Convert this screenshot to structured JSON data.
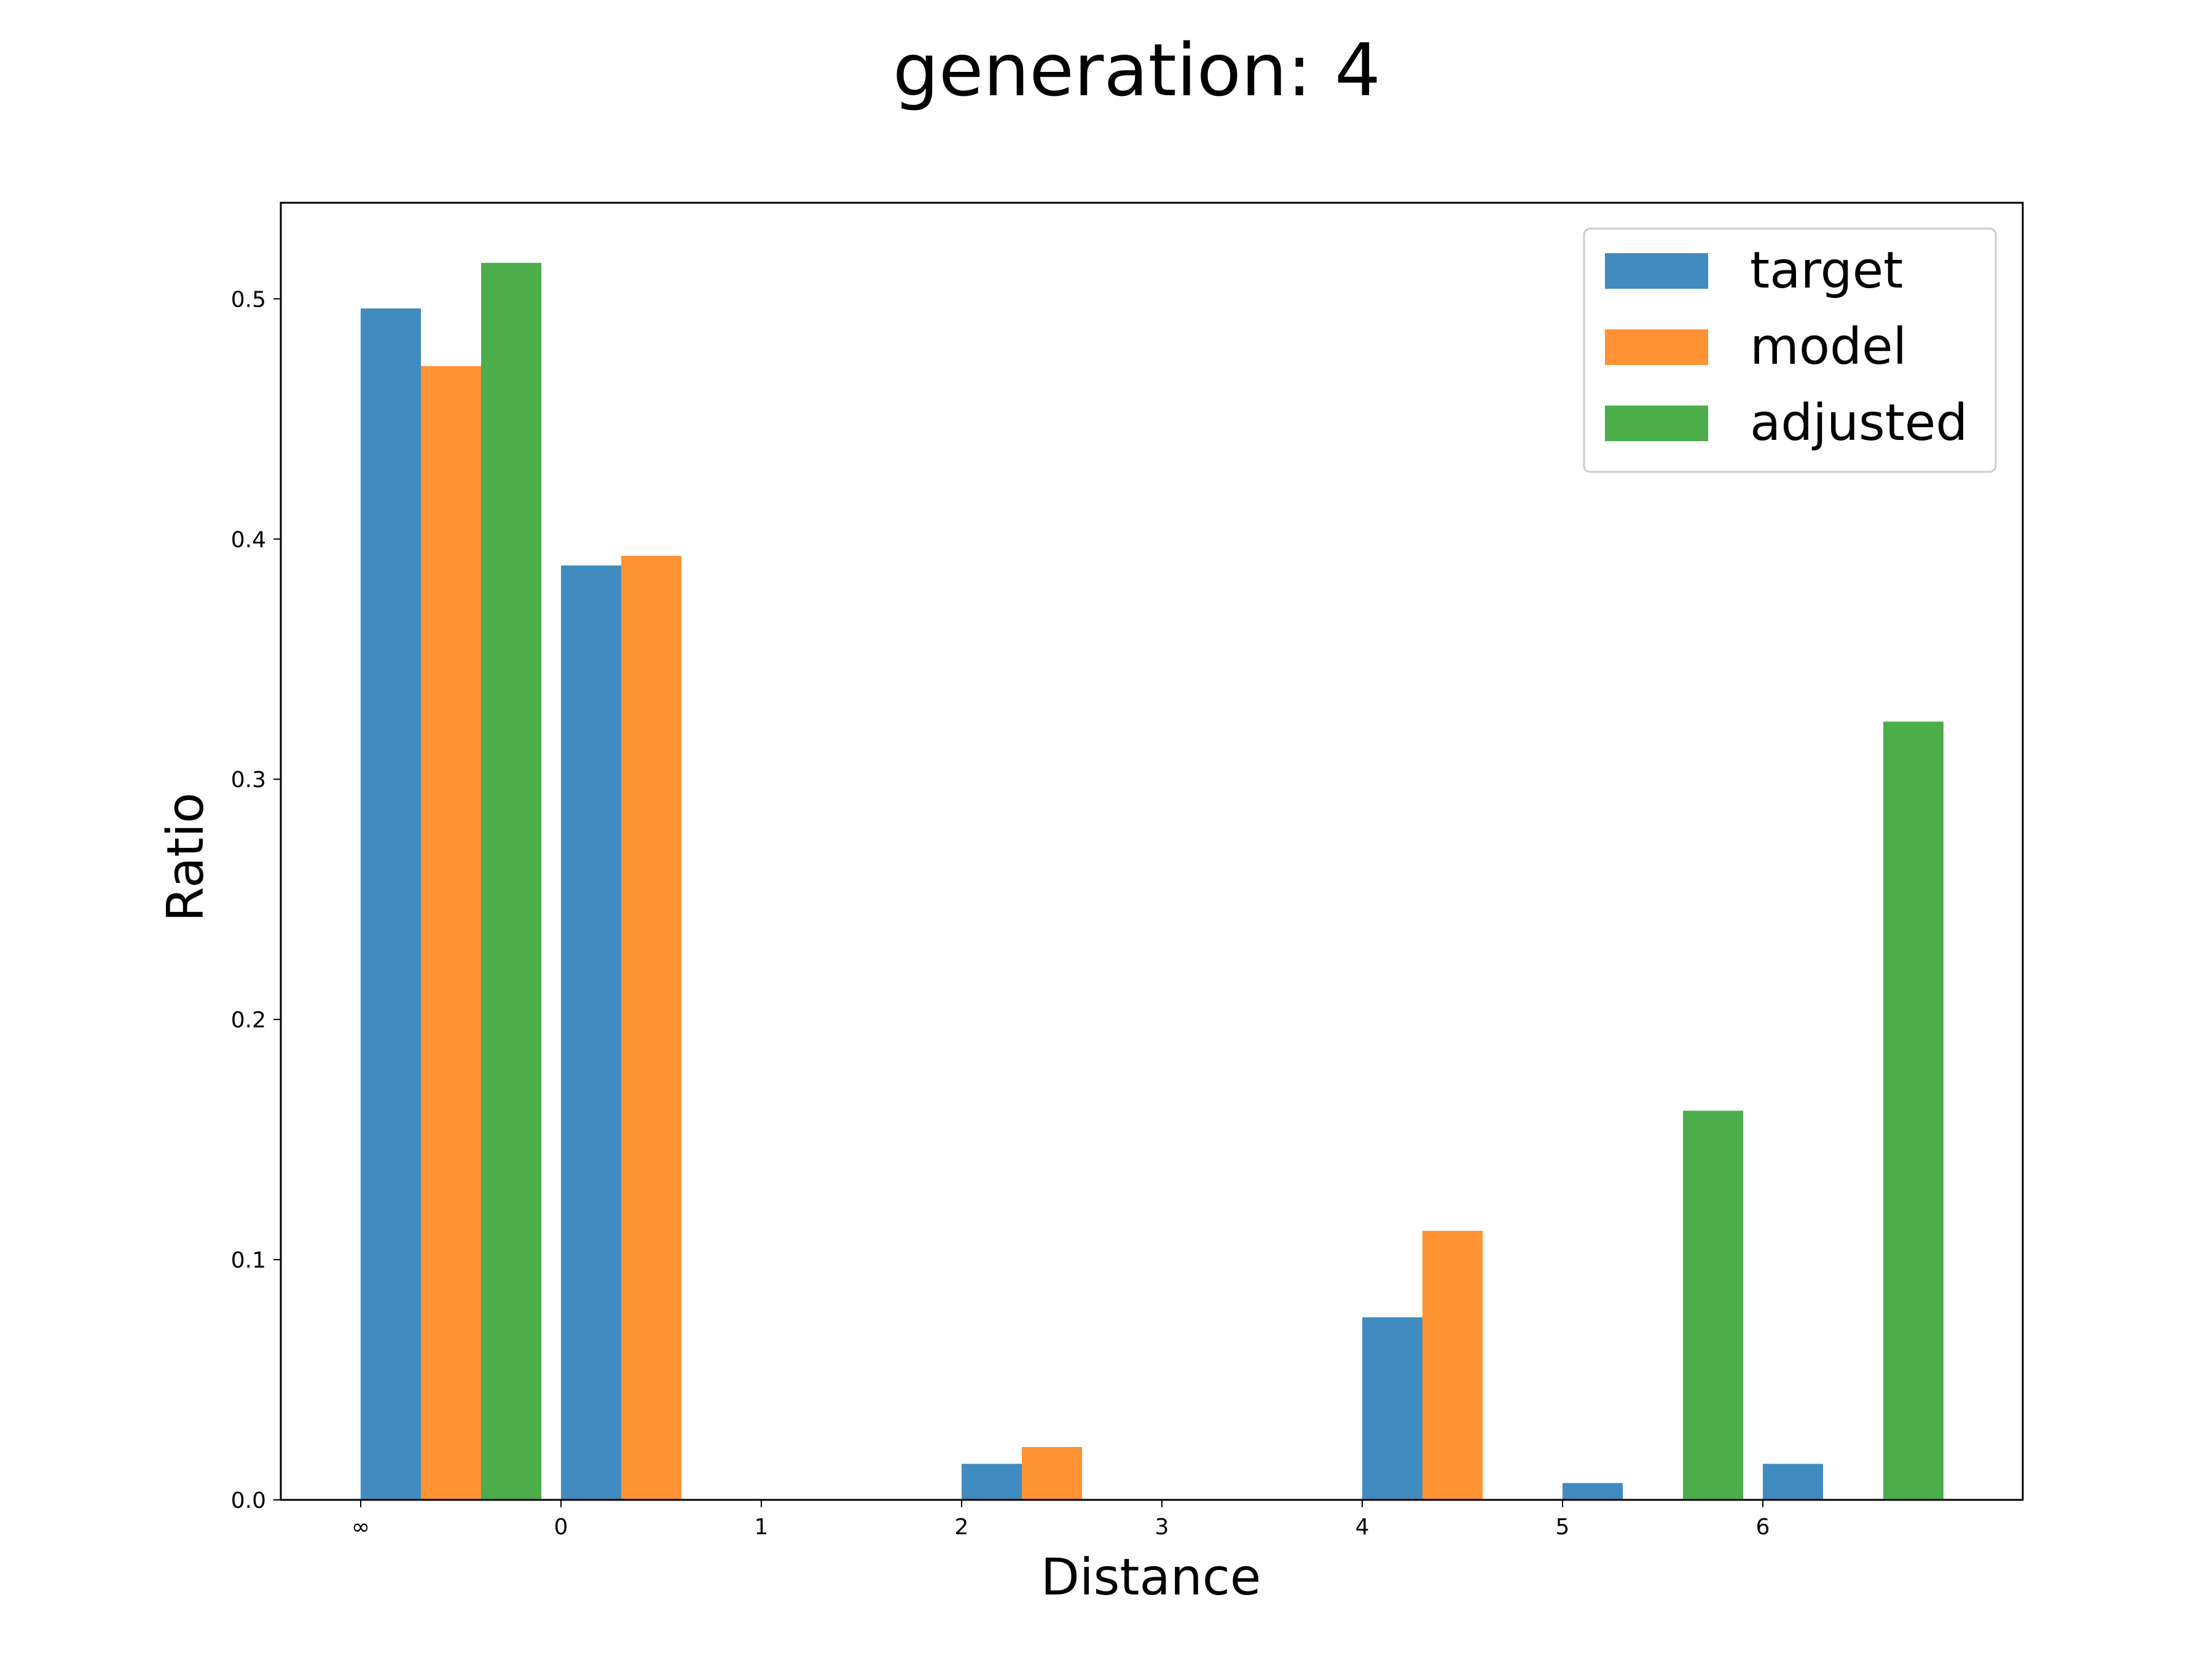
{
  "chart_data": {
    "type": "bar",
    "title": "generation: 4",
    "xlabel": "Distance",
    "ylabel": "Ratio",
    "categories": [
      "∞",
      "0",
      "1",
      "2",
      "3",
      "4",
      "5",
      "6"
    ],
    "ylim": [
      0,
      0.54
    ],
    "yticks": [
      "0.0",
      "0.1",
      "0.2",
      "0.3",
      "0.4",
      "0.5"
    ],
    "grid": false,
    "legend_position": "top-right",
    "series": [
      {
        "name": "target",
        "color": "#1f77b4",
        "values": [
          0.496,
          0.389,
          0,
          0.015,
          0,
          0.076,
          0.007,
          0.015
        ]
      },
      {
        "name": "model",
        "color": "#ff7f0e",
        "values": [
          0.472,
          0.393,
          0,
          0.022,
          0,
          0.112,
          0,
          0
        ]
      },
      {
        "name": "adjusted",
        "color": "#2ca02c",
        "values": [
          0.515,
          0,
          0,
          0,
          0,
          0,
          0.162,
          0.324
        ]
      }
    ]
  }
}
